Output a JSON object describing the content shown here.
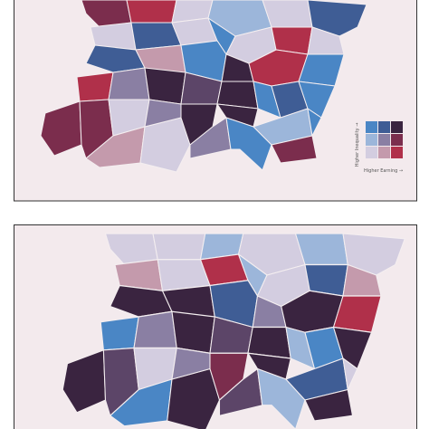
{
  "top_map": {
    "legend": {
      "y_label": "Higher Inequality →",
      "x_label": "Higher Earning →"
    }
  }
}
